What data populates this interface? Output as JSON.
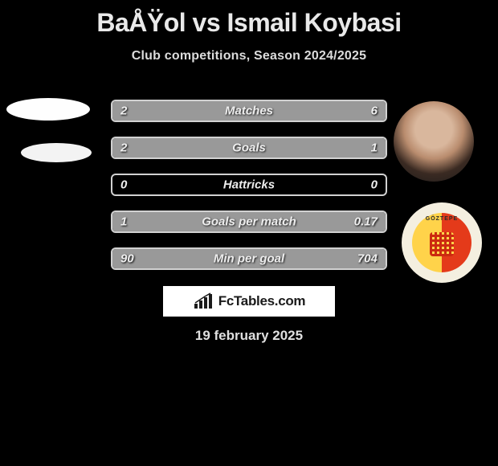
{
  "header": {
    "title": "BaÅŸol vs Ismail Koybasi",
    "subtitle": "Club competitions, Season 2024/2025"
  },
  "stats": {
    "bar_border_color": "#d1d1d1",
    "fill_color": "#999999",
    "text_color": "#f0f0f0",
    "rows": [
      {
        "label": "Matches",
        "left": "2",
        "right": "6",
        "left_pct": 25,
        "right_pct": 75
      },
      {
        "label": "Goals",
        "left": "2",
        "right": "1",
        "left_pct": 66,
        "right_pct": 34
      },
      {
        "label": "Hattricks",
        "left": "0",
        "right": "0",
        "left_pct": 0,
        "right_pct": 0
      },
      {
        "label": "Goals per match",
        "left": "1",
        "right": "0.17",
        "left_pct": 85,
        "right_pct": 15
      },
      {
        "label": "Min per goal",
        "left": "90",
        "right": "704",
        "left_pct": 12,
        "right_pct": 88
      }
    ]
  },
  "branding": {
    "text": "FcTables.com"
  },
  "date": "19 february 2025",
  "crest": {
    "text": "GÖZTEPE"
  },
  "colors": {
    "background": "#000000",
    "title": "#e9e9e9",
    "subtitle": "#dcdcdc",
    "date": "#e0e0e0",
    "branding_bg": "#ffffff"
  }
}
